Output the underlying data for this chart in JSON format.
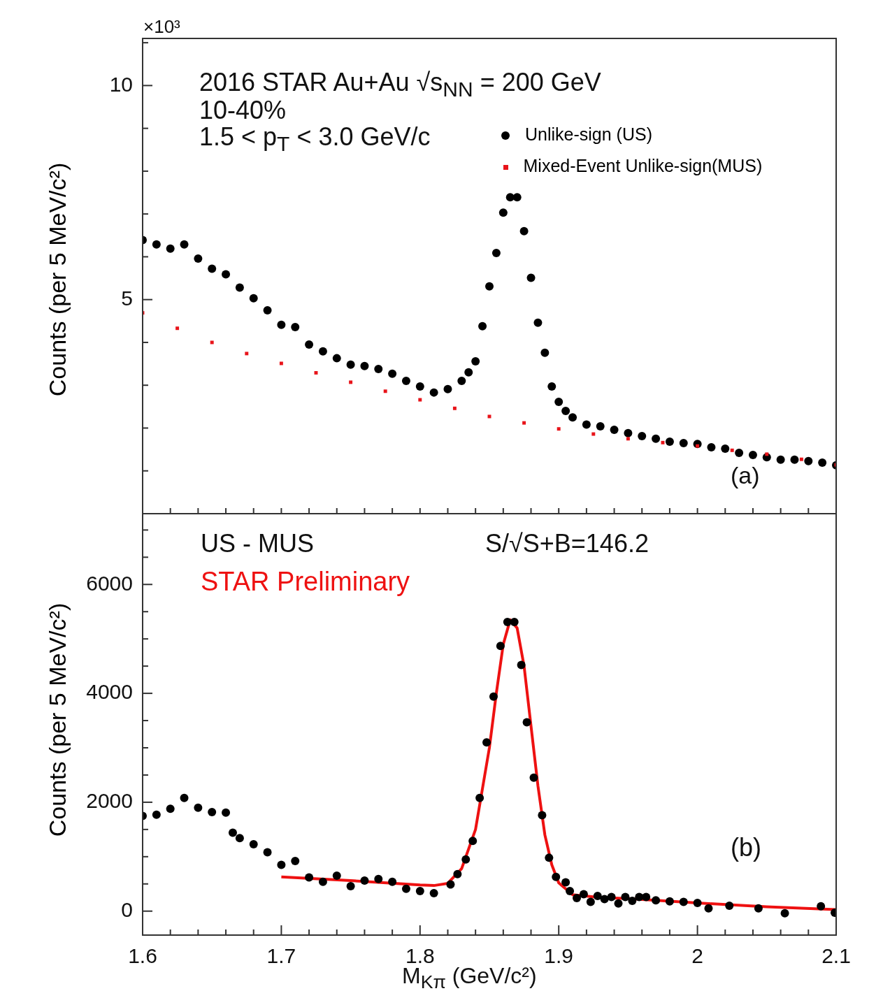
{
  "chart_data": [
    {
      "type": "scatter",
      "ylabel": "Counts (per 5 MeV/c²)",
      "annotations": [
        "2016 STAR Au+Au √s$_{NN}$ = 200 GeV",
        "10-40%",
        "1.5 < p$_{T}$ < 3.0 GeV/c",
        "(a)",
        "×10³"
      ],
      "xlim": [
        1.6,
        2.1
      ],
      "xticks": [
        {
          "value": 1.6,
          "label": null
        },
        {
          "value": 1.62,
          "label": null
        },
        {
          "value": 1.64,
          "label": null
        },
        {
          "value": 1.66,
          "label": null
        },
        {
          "value": 1.68,
          "label": null
        },
        {
          "value": 1.7,
          "label": null
        },
        {
          "value": 1.72,
          "label": null
        },
        {
          "value": 1.74,
          "label": null
        },
        {
          "value": 1.76,
          "label": null
        },
        {
          "value": 1.78,
          "label": null
        },
        {
          "value": 1.8,
          "label": null
        },
        {
          "value": 1.82,
          "label": null
        },
        {
          "value": 1.84,
          "label": null
        },
        {
          "value": 1.86,
          "label": null
        },
        {
          "value": 1.88,
          "label": null
        },
        {
          "value": 1.9,
          "label": null
        },
        {
          "value": 1.92,
          "label": null
        },
        {
          "value": 1.94,
          "label": null
        },
        {
          "value": 1.96,
          "label": null
        },
        {
          "value": 1.98,
          "label": null
        },
        {
          "value": 2.0,
          "label": null
        },
        {
          "value": 2.02,
          "label": null
        },
        {
          "value": 2.04,
          "label": null
        },
        {
          "value": 2.06,
          "label": null
        },
        {
          "value": 2.08,
          "label": null
        },
        {
          "value": 2.1,
          "label": null
        }
      ],
      "ylim": [
        0,
        11.1
      ],
      "yticks": [
        {
          "value": 1,
          "label": null
        },
        {
          "value": 2,
          "label": null
        },
        {
          "value": 3,
          "label": null
        },
        {
          "value": 4,
          "label": null
        },
        5,
        {
          "value": 6,
          "label": null
        },
        {
          "value": 7,
          "label": null
        },
        {
          "value": 8,
          "label": null
        },
        {
          "value": 9,
          "label": null
        },
        10,
        {
          "value": 11,
          "label": null
        }
      ],
      "tick_labels": "y",
      "legend": "top right",
      "series": [
        {
          "name": "Unlike-sign (US)",
          "color": "#000000",
          "marker": "circle",
          "x": [
            1.6,
            1.61,
            1.62,
            1.63,
            1.64,
            1.65,
            1.66,
            1.67,
            1.68,
            1.69,
            1.7,
            1.71,
            1.72,
            1.73,
            1.74,
            1.75,
            1.76,
            1.77,
            1.78,
            1.79,
            1.8,
            1.81,
            1.82,
            1.83,
            1.835,
            1.84,
            1.845,
            1.85,
            1.855,
            1.86,
            1.865,
            1.87,
            1.875,
            1.88,
            1.885,
            1.89,
            1.895,
            1.9,
            1.905,
            1.91,
            1.92,
            1.93,
            1.94,
            1.95,
            1.96,
            1.97,
            1.98,
            1.99,
            2.0,
            2.01,
            2.02,
            2.03,
            2.04,
            2.05,
            2.06,
            2.07,
            2.08,
            2.09,
            2.1
          ],
          "values": [
            6.39,
            6.29,
            6.19,
            6.29,
            5.96,
            5.72,
            5.59,
            5.28,
            5.03,
            4.75,
            4.41,
            4.36,
            3.95,
            3.79,
            3.63,
            3.48,
            3.45,
            3.38,
            3.27,
            3.1,
            2.97,
            2.83,
            2.91,
            3.1,
            3.3,
            3.56,
            4.38,
            5.31,
            6.09,
            7.03,
            7.39,
            7.39,
            6.6,
            5.51,
            4.46,
            3.76,
            2.97,
            2.61,
            2.4,
            2.25,
            2.08,
            2.04,
            1.96,
            1.88,
            1.81,
            1.75,
            1.68,
            1.65,
            1.63,
            1.55,
            1.52,
            1.42,
            1.37,
            1.32,
            1.26,
            1.26,
            1.23,
            1.19,
            1.13
          ]
        },
        {
          "name": "Mixed-Event Unlike-sign(MUS)",
          "color": "#e8141a",
          "marker": "square",
          "x": [
            1.6,
            1.625,
            1.65,
            1.675,
            1.7,
            1.725,
            1.75,
            1.775,
            1.8,
            1.825,
            1.85,
            1.875,
            1.9,
            1.925,
            1.95,
            1.975,
            2.0,
            2.025,
            2.05,
            2.075,
            2.1
          ],
          "values": [
            4.69,
            4.33,
            4.0,
            3.74,
            3.51,
            3.29,
            3.07,
            2.86,
            2.66,
            2.46,
            2.27,
            2.12,
            1.98,
            1.86,
            1.75,
            1.66,
            1.58,
            1.48,
            1.39,
            1.27,
            1.14
          ]
        }
      ]
    },
    {
      "type": "scatter",
      "xlabel": "M$_{Kπ}$ (GeV/c²)",
      "ylabel": "Counts (per 5 MeV/c²)",
      "annotations": [
        "US - MUS",
        "STAR Preliminary",
        "S/√S+B=146.2",
        "(b)"
      ],
      "xlim": [
        1.6,
        2.1
      ],
      "xticks": [
        1.6,
        {
          "value": 1.62,
          "label": null
        },
        {
          "value": 1.64,
          "label": null
        },
        {
          "value": 1.66,
          "label": null
        },
        {
          "value": 1.68,
          "label": null
        },
        1.7,
        {
          "value": 1.72,
          "label": null
        },
        {
          "value": 1.74,
          "label": null
        },
        {
          "value": 1.76,
          "label": null
        },
        {
          "value": 1.78,
          "label": null
        },
        1.8,
        {
          "value": 1.82,
          "label": null
        },
        {
          "value": 1.84,
          "label": null
        },
        {
          "value": 1.86,
          "label": null
        },
        {
          "value": 1.88,
          "label": null
        },
        1.9,
        {
          "value": 1.92,
          "label": null
        },
        {
          "value": 1.94,
          "label": null
        },
        {
          "value": 1.96,
          "label": null
        },
        {
          "value": 1.98,
          "label": null
        },
        2,
        {
          "value": 2.02,
          "label": null
        },
        {
          "value": 2.04,
          "label": null
        },
        {
          "value": 2.06,
          "label": null
        },
        {
          "value": 2.08,
          "label": null
        },
        2.1
      ],
      "ylim": [
        -440,
        7300
      ],
      "yticks": [
        0,
        {
          "value": 500,
          "label": null
        },
        {
          "value": 1000,
          "label": null
        },
        {
          "value": 1500,
          "label": null
        },
        2000,
        {
          "value": 2500,
          "label": null
        },
        {
          "value": 3000,
          "label": null
        },
        {
          "value": 3500,
          "label": null
        },
        4000,
        {
          "value": 4500,
          "label": null
        },
        {
          "value": 5000,
          "label": null
        },
        {
          "value": 5500,
          "label": null
        },
        6000,
        {
          "value": 6500,
          "label": null
        },
        {
          "value": 7000,
          "label": null
        }
      ],
      "series": [
        {
          "color": "#000000",
          "marker": "circle",
          "x": [
            1.6,
            1.61,
            1.62,
            1.63,
            1.64,
            1.65,
            1.66,
            1.665,
            1.67,
            1.68,
            1.69,
            1.7,
            1.71,
            1.72,
            1.73,
            1.74,
            1.75,
            1.76,
            1.77,
            1.78,
            1.79,
            1.8,
            1.81,
            1.822,
            1.827,
            1.833,
            1.838,
            1.843,
            1.848,
            1.853,
            1.858,
            1.863,
            1.868,
            1.873,
            1.877,
            1.882,
            1.888,
            1.893,
            1.898,
            1.905,
            1.908,
            1.913,
            1.918,
            1.923,
            1.928,
            1.933,
            1.938,
            1.943,
            1.948,
            1.953,
            1.958,
            1.963,
            1.97,
            1.98,
            1.99,
            2.0,
            2.008,
            2.023,
            2.044,
            2.063,
            2.089,
            2.099
          ],
          "values": [
            1750,
            1770,
            1880,
            2080,
            1900,
            1820,
            1810,
            1440,
            1340,
            1230,
            1080,
            850,
            920,
            620,
            540,
            650,
            460,
            560,
            590,
            540,
            410,
            370,
            330,
            490,
            680,
            950,
            1290,
            2080,
            3100,
            3940,
            4870,
            5310,
            5310,
            4520,
            3470,
            2450,
            1760,
            980,
            630,
            530,
            370,
            240,
            310,
            170,
            280,
            220,
            260,
            140,
            260,
            190,
            260,
            260,
            200,
            180,
            170,
            150,
            50,
            100,
            50,
            -40,
            90,
            -30
          ]
        },
        {
          "type": "line",
          "color": "#ee1111",
          "x": [
            1.7,
            1.75,
            1.8,
            1.81,
            1.82,
            1.83,
            1.84,
            1.85,
            1.855,
            1.86,
            1.865,
            1.87,
            1.875,
            1.88,
            1.885,
            1.89,
            1.895,
            1.9,
            1.91,
            1.93,
            1.95,
            1.97,
            2.0,
            2.05,
            2.1
          ],
          "values": [
            630,
            560,
            480,
            470,
            510,
            780,
            1500,
            3000,
            4000,
            4900,
            5350,
            5200,
            4500,
            3400,
            2300,
            1400,
            850,
            520,
            300,
            250,
            230,
            200,
            150,
            80,
            30
          ]
        }
      ]
    }
  ]
}
